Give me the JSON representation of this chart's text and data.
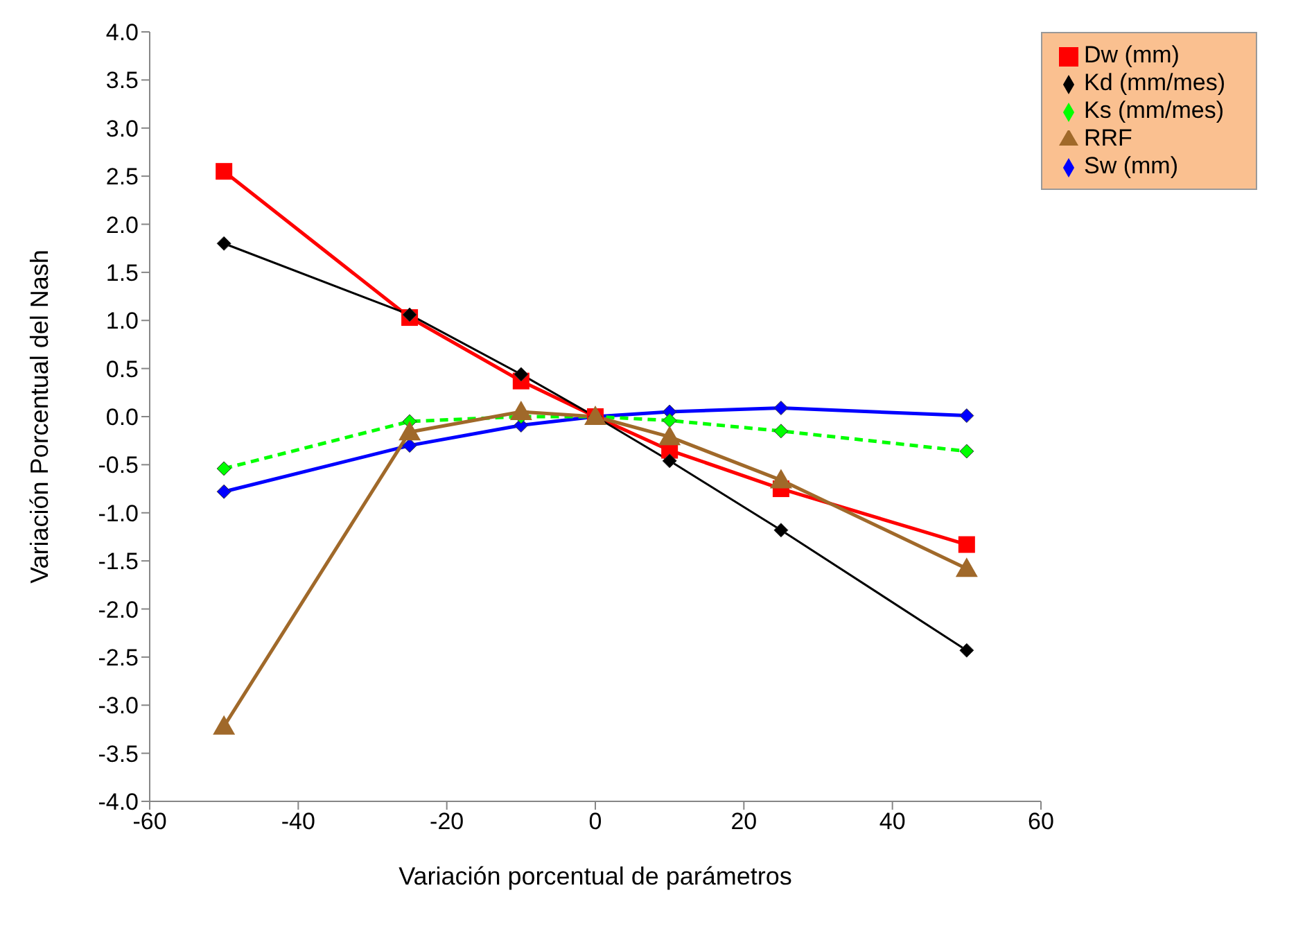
{
  "chart_data": {
    "type": "line",
    "xlabel": "Variación porcentual de parámetros",
    "ylabel": "Variación Porcentual del Nash",
    "x": [
      -50,
      -25,
      -10,
      0,
      10,
      25,
      50
    ],
    "series": [
      {
        "name": "Sw (mm)",
        "color": "#0000ff",
        "marker": "diamond",
        "line_style": "solid",
        "values": [
          -0.78,
          -0.3,
          -0.09,
          0,
          0.05,
          0.09,
          0.01
        ]
      },
      {
        "name": "Dw (mm)",
        "color": "#ff0000",
        "marker": "square",
        "line_style": "solid",
        "values": [
          2.55,
          1.03,
          0.37,
          0,
          -0.35,
          -0.75,
          -1.33
        ]
      },
      {
        "name": "Ks (mm/mes)",
        "color": "#00ff00",
        "marker": "diamond",
        "line_style": "dashed",
        "values": [
          -0.54,
          -0.05,
          0.0,
          0,
          -0.04,
          -0.15,
          -0.36
        ]
      },
      {
        "name": "Kd (mm/mes)",
        "color": "#000000",
        "marker": "diamond",
        "line_style": "solid",
        "values": [
          1.8,
          1.06,
          0.44,
          0,
          -0.46,
          -1.18,
          -2.43
        ]
      },
      {
        "name": "RRF",
        "color": "#a0692a",
        "marker": "triangle",
        "line_style": "solid",
        "values": [
          -3.22,
          -0.16,
          0.05,
          0,
          -0.21,
          -0.66,
          -1.58
        ]
      }
    ],
    "xlim": [
      -60,
      60
    ],
    "xticks": [
      -60,
      -40,
      -20,
      0,
      20,
      40,
      60
    ],
    "ylim": [
      -4,
      4
    ],
    "yticks": [
      {
        "value": -4,
        "label": "-4.0"
      },
      {
        "value": -3.5,
        "label": "-3.5"
      },
      {
        "value": -3,
        "label": "-3.0"
      },
      {
        "value": -2.5,
        "label": "-2.5"
      },
      {
        "value": -2,
        "label": "-2.0"
      },
      {
        "value": -1.5,
        "label": "-1.5"
      },
      {
        "value": -1,
        "label": "-1.0"
      },
      {
        "value": -0.5,
        "label": "-0.5"
      },
      {
        "value": 0,
        "label": "0.0"
      },
      {
        "value": 0.5,
        "label": "0.5"
      },
      {
        "value": 1,
        "label": "1.0"
      },
      {
        "value": 1.5,
        "label": "1.5"
      },
      {
        "value": 2,
        "label": "2.0"
      },
      {
        "value": 2.5,
        "label": "2.5"
      },
      {
        "value": 3,
        "label": "3.0"
      },
      {
        "value": 3.5,
        "label": "3.5"
      },
      {
        "value": 4,
        "label": "4.0"
      }
    ],
    "grid": false,
    "legend": "top right"
  }
}
